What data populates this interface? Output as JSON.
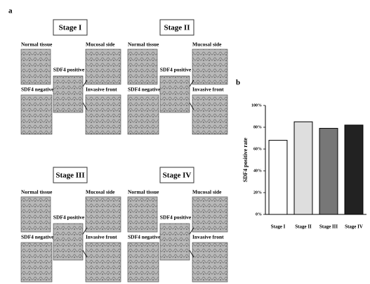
{
  "panel_a": {
    "label": "a",
    "stages": [
      {
        "title": "Stage I",
        "normal": "Normal tissue",
        "negative": "SDF4 negative",
        "positive": "SDF4 positive",
        "mucosal": "Mucosal side",
        "invasive": "Invasive front"
      },
      {
        "title": "Stage II",
        "normal": "Normal tissue",
        "negative": "SDF4 negative",
        "positive": "SDF4 positive",
        "mucosal": "Mucosal side",
        "invasive": "Invasive front"
      },
      {
        "title": "Stage III",
        "normal": "Normal tissue",
        "negative": "SDF4 negative",
        "positive": "SDF4 positive",
        "mucosal": "Mucosal side",
        "invasive": "Invasive front"
      },
      {
        "title": "Stage IV",
        "normal": "Normal tissue",
        "negative": "SDF4 negative",
        "positive": "SDF4 positive",
        "mucosal": "Mucosal side",
        "invasive": "Invasive front"
      }
    ]
  },
  "chart_data": {
    "type": "bar",
    "label": "b",
    "y_label": "SDF4 positive rate",
    "categories": [
      "Stage I",
      "Stage II",
      "Stage III",
      "Stage IV"
    ],
    "values": [
      68,
      85,
      79,
      82
    ],
    "colors": [
      "#ffffff",
      "#dedede",
      "#777777",
      "#222222"
    ],
    "ylim": [
      0,
      100
    ],
    "yticks": [
      {
        "value": 0,
        "label": "0%"
      },
      {
        "value": 20,
        "label": "20%"
      },
      {
        "value": 40,
        "label": "40%"
      },
      {
        "value": 60,
        "label": "60%"
      },
      {
        "value": 80,
        "label": "80%"
      },
      {
        "value": 100,
        "label": "100%"
      }
    ]
  }
}
